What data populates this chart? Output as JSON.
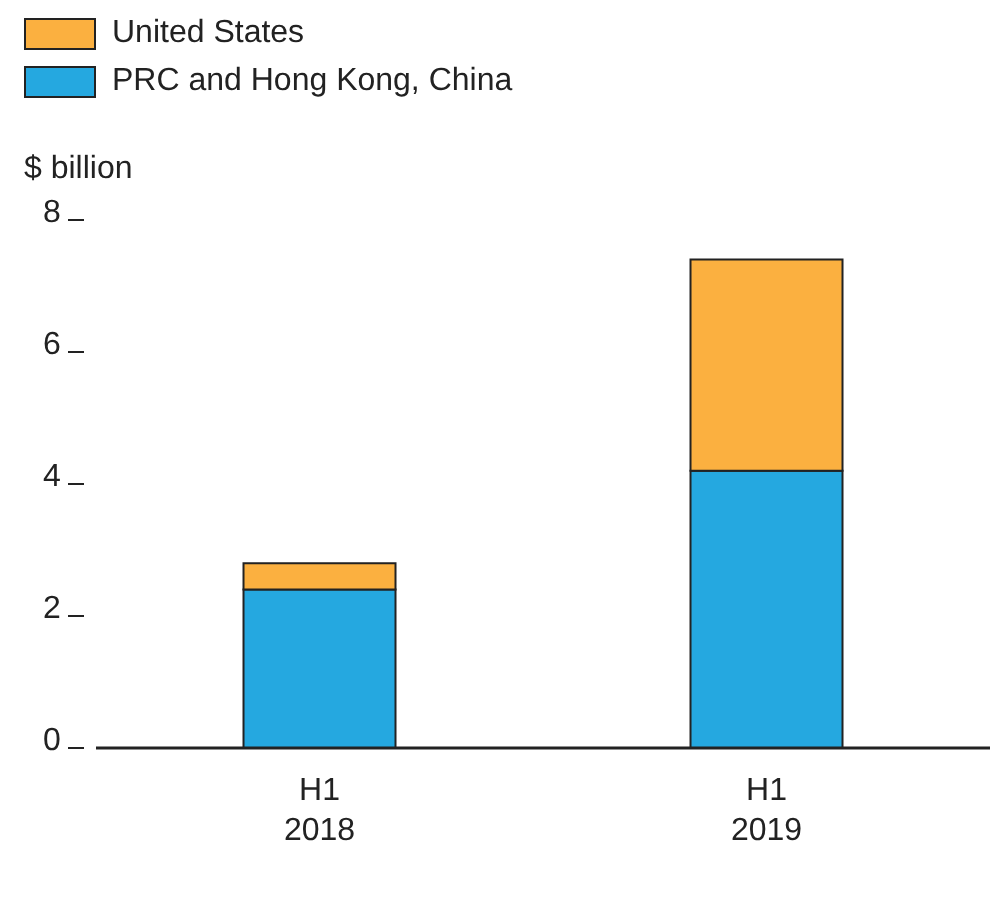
{
  "chart_data": {
    "type": "bar",
    "ylabel": "$ billion",
    "categories": [
      "H1\n2018",
      "H1\n2019"
    ],
    "stacked": true,
    "legend": "top left",
    "grid": false,
    "series": [
      {
        "name": "PRC and Hong Kong, China",
        "color": "#25a8e0",
        "values": [
          2.4,
          4.2
        ]
      },
      {
        "name": "United States",
        "color": "#fbb040",
        "values": [
          0.4,
          3.2
        ]
      }
    ],
    "ylim": [
      0,
      8
    ],
    "yticks": [
      0,
      2,
      4,
      6,
      8
    ]
  }
}
